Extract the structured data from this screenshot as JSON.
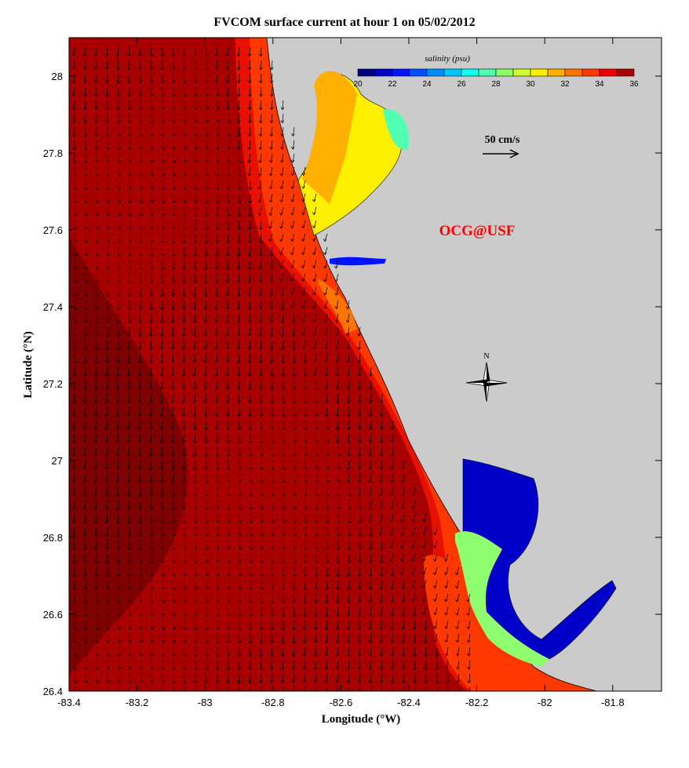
{
  "title": "FVCOM surface current at hour 1 on 05/02/2012",
  "xlabel": "Longitude (°W)",
  "ylabel": "Latitude (°N)",
  "x_ticks": [
    "-83.4",
    "-83.2",
    "-83",
    "-82.8",
    "-82.6",
    "-82.4",
    "-82.2",
    "-82",
    "-81.8"
  ],
  "y_ticks": [
    "28",
    "27.8",
    "27.6",
    "27.4",
    "27.2",
    "27",
    "26.8",
    "26.6",
    "26.4"
  ],
  "xlim": [
    -83.4,
    -81.66
  ],
  "ylim": [
    26.4,
    28.1
  ],
  "colorbar": {
    "label": "salinity (psu)",
    "ticks": [
      "20",
      "22",
      "24",
      "26",
      "28",
      "30",
      "32",
      "34",
      "36"
    ],
    "colors": [
      "#00007f",
      "#0000c8",
      "#0014ff",
      "#0050ff",
      "#008cff",
      "#00c8ff",
      "#10ffef",
      "#50ffaf",
      "#8fff6f",
      "#cfff2f",
      "#ffef00",
      "#ffb000",
      "#ff7400",
      "#ff3800",
      "#f00000",
      "#a80000"
    ]
  },
  "scale_arrow_label": "50 cm/s",
  "watermark": "OCG@USF",
  "north_label": "N",
  "colors": {
    "land": "#cbcbcb",
    "ocean_offshore": "#a80000",
    "ocean_deep": "#7f0000",
    "ocean_nearshore": "#e81000"
  }
}
